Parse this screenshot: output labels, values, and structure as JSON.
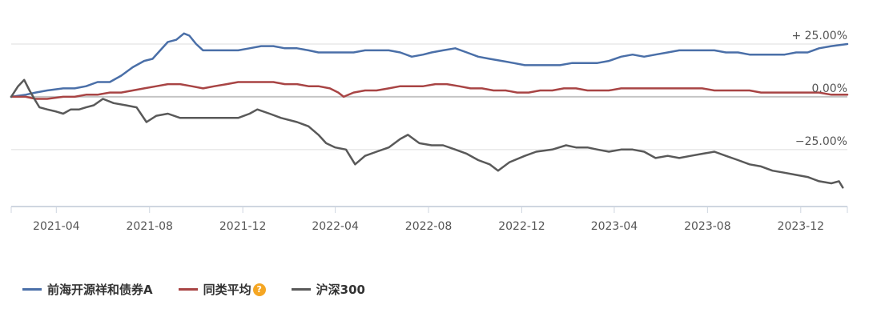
{
  "chart_data": {
    "type": "line",
    "x_ticks": [
      "2021-04",
      "2021-08",
      "2021-12",
      "2022-04",
      "2022-08",
      "2022-12",
      "2023-04",
      "2023-08",
      "2023-12"
    ],
    "x_range": [
      "2021-02-01",
      "2024-01-31"
    ],
    "y_ticks": [
      {
        "value": 25,
        "label": "+ 25.00%"
      },
      {
        "value": 0,
        "label": "0.00%"
      },
      {
        "value": -25,
        "label": "−25.00%"
      }
    ],
    "ylim": [
      -52,
      36
    ],
    "grid": "horizontal",
    "legend_position": "bottom-left",
    "series": [
      {
        "name": "前海开源祥和债券A",
        "color": "#4a6fa8",
        "points": [
          [
            "2021-02-01",
            0
          ],
          [
            "2021-02-20",
            1
          ],
          [
            "2021-03-05",
            2
          ],
          [
            "2021-03-20",
            3
          ],
          [
            "2021-04-10",
            4
          ],
          [
            "2021-04-25",
            4
          ],
          [
            "2021-05-10",
            5
          ],
          [
            "2021-05-25",
            7
          ],
          [
            "2021-06-10",
            7
          ],
          [
            "2021-06-25",
            10
          ],
          [
            "2021-07-10",
            14
          ],
          [
            "2021-07-25",
            17
          ],
          [
            "2021-08-05",
            18
          ],
          [
            "2021-08-15",
            22
          ],
          [
            "2021-08-25",
            26
          ],
          [
            "2021-09-05",
            27
          ],
          [
            "2021-09-15",
            30
          ],
          [
            "2021-09-22",
            29
          ],
          [
            "2021-10-01",
            25
          ],
          [
            "2021-10-10",
            22
          ],
          [
            "2021-10-25",
            22
          ],
          [
            "2021-11-10",
            22
          ],
          [
            "2021-11-25",
            22
          ],
          [
            "2021-12-10",
            23
          ],
          [
            "2021-12-25",
            24
          ],
          [
            "2022-01-10",
            24
          ],
          [
            "2022-01-25",
            23
          ],
          [
            "2022-02-10",
            23
          ],
          [
            "2022-02-25",
            22
          ],
          [
            "2022-03-10",
            21
          ],
          [
            "2022-03-25",
            21
          ],
          [
            "2022-04-10",
            21
          ],
          [
            "2022-04-25",
            21
          ],
          [
            "2022-05-10",
            22
          ],
          [
            "2022-05-25",
            22
          ],
          [
            "2022-06-10",
            22
          ],
          [
            "2022-06-25",
            21
          ],
          [
            "2022-07-10",
            19
          ],
          [
            "2022-07-25",
            20
          ],
          [
            "2022-08-05",
            21
          ],
          [
            "2022-08-20",
            22
          ],
          [
            "2022-09-05",
            23
          ],
          [
            "2022-09-20",
            21
          ],
          [
            "2022-10-05",
            19
          ],
          [
            "2022-10-20",
            18
          ],
          [
            "2022-11-05",
            17
          ],
          [
            "2022-11-20",
            16
          ],
          [
            "2022-12-05",
            15
          ],
          [
            "2022-12-20",
            15
          ],
          [
            "2023-01-05",
            15
          ],
          [
            "2023-01-20",
            15
          ],
          [
            "2023-02-05",
            16
          ],
          [
            "2023-02-20",
            16
          ],
          [
            "2023-03-10",
            16
          ],
          [
            "2023-03-25",
            17
          ],
          [
            "2023-04-10",
            19
          ],
          [
            "2023-04-25",
            20
          ],
          [
            "2023-05-10",
            19
          ],
          [
            "2023-05-25",
            20
          ],
          [
            "2023-06-10",
            21
          ],
          [
            "2023-06-25",
            22
          ],
          [
            "2023-07-10",
            22
          ],
          [
            "2023-07-25",
            22
          ],
          [
            "2023-08-10",
            22
          ],
          [
            "2023-08-25",
            21
          ],
          [
            "2023-09-10",
            21
          ],
          [
            "2023-09-25",
            20
          ],
          [
            "2023-10-10",
            20
          ],
          [
            "2023-10-25",
            20
          ],
          [
            "2023-11-10",
            20
          ],
          [
            "2023-11-25",
            21
          ],
          [
            "2023-12-10",
            21
          ],
          [
            "2023-12-25",
            23
          ],
          [
            "2024-01-10",
            24
          ],
          [
            "2024-01-31",
            25
          ]
        ]
      },
      {
        "name": "同类平均",
        "color": "#a84444",
        "points": [
          [
            "2021-02-01",
            0
          ],
          [
            "2021-02-20",
            0
          ],
          [
            "2021-03-05",
            -1
          ],
          [
            "2021-03-20",
            -1
          ],
          [
            "2021-04-10",
            0
          ],
          [
            "2021-04-25",
            0
          ],
          [
            "2021-05-10",
            1
          ],
          [
            "2021-05-25",
            1
          ],
          [
            "2021-06-10",
            2
          ],
          [
            "2021-06-25",
            2
          ],
          [
            "2021-07-10",
            3
          ],
          [
            "2021-07-25",
            4
          ],
          [
            "2021-08-10",
            5
          ],
          [
            "2021-08-25",
            6
          ],
          [
            "2021-09-10",
            6
          ],
          [
            "2021-09-25",
            5
          ],
          [
            "2021-10-10",
            4
          ],
          [
            "2021-10-25",
            5
          ],
          [
            "2021-11-10",
            6
          ],
          [
            "2021-11-25",
            7
          ],
          [
            "2021-12-10",
            7
          ],
          [
            "2021-12-25",
            7
          ],
          [
            "2022-01-10",
            7
          ],
          [
            "2022-01-25",
            6
          ],
          [
            "2022-02-10",
            6
          ],
          [
            "2022-02-25",
            5
          ],
          [
            "2022-03-10",
            5
          ],
          [
            "2022-03-25",
            4
          ],
          [
            "2022-04-05",
            2
          ],
          [
            "2022-04-12",
            0
          ],
          [
            "2022-04-25",
            2
          ],
          [
            "2022-05-10",
            3
          ],
          [
            "2022-05-25",
            3
          ],
          [
            "2022-06-10",
            4
          ],
          [
            "2022-06-25",
            5
          ],
          [
            "2022-07-10",
            5
          ],
          [
            "2022-07-25",
            5
          ],
          [
            "2022-08-10",
            6
          ],
          [
            "2022-08-25",
            6
          ],
          [
            "2022-09-10",
            5
          ],
          [
            "2022-09-25",
            4
          ],
          [
            "2022-10-10",
            4
          ],
          [
            "2022-10-25",
            3
          ],
          [
            "2022-11-10",
            3
          ],
          [
            "2022-11-25",
            2
          ],
          [
            "2022-12-10",
            2
          ],
          [
            "2022-12-25",
            3
          ],
          [
            "2023-01-10",
            3
          ],
          [
            "2023-01-25",
            4
          ],
          [
            "2023-02-10",
            4
          ],
          [
            "2023-02-25",
            3
          ],
          [
            "2023-03-10",
            3
          ],
          [
            "2023-03-25",
            3
          ],
          [
            "2023-04-10",
            4
          ],
          [
            "2023-04-25",
            4
          ],
          [
            "2023-05-10",
            4
          ],
          [
            "2023-05-25",
            4
          ],
          [
            "2023-06-10",
            4
          ],
          [
            "2023-06-25",
            4
          ],
          [
            "2023-07-10",
            4
          ],
          [
            "2023-07-25",
            4
          ],
          [
            "2023-08-10",
            3
          ],
          [
            "2023-08-25",
            3
          ],
          [
            "2023-09-10",
            3
          ],
          [
            "2023-09-25",
            3
          ],
          [
            "2023-10-10",
            2
          ],
          [
            "2023-10-25",
            2
          ],
          [
            "2023-11-10",
            2
          ],
          [
            "2023-11-25",
            2
          ],
          [
            "2023-12-10",
            2
          ],
          [
            "2023-12-25",
            2
          ],
          [
            "2024-01-10",
            1
          ],
          [
            "2024-01-31",
            1
          ]
        ]
      },
      {
        "name": "沪深300",
        "color": "#595959",
        "points": [
          [
            "2021-02-01",
            0
          ],
          [
            "2021-02-10",
            5
          ],
          [
            "2021-02-18",
            8
          ],
          [
            "2021-02-25",
            3
          ],
          [
            "2021-03-05",
            -2
          ],
          [
            "2021-03-10",
            -5
          ],
          [
            "2021-03-20",
            -6
          ],
          [
            "2021-04-01",
            -7
          ],
          [
            "2021-04-10",
            -8
          ],
          [
            "2021-04-20",
            -6
          ],
          [
            "2021-05-01",
            -6
          ],
          [
            "2021-05-10",
            -5
          ],
          [
            "2021-05-20",
            -4
          ],
          [
            "2021-06-01",
            -1
          ],
          [
            "2021-06-15",
            -3
          ],
          [
            "2021-07-01",
            -4
          ],
          [
            "2021-07-15",
            -5
          ],
          [
            "2021-07-28",
            -12
          ],
          [
            "2021-08-10",
            -9
          ],
          [
            "2021-08-25",
            -8
          ],
          [
            "2021-09-10",
            -10
          ],
          [
            "2021-09-25",
            -10
          ],
          [
            "2021-10-10",
            -10
          ],
          [
            "2021-10-25",
            -10
          ],
          [
            "2021-11-10",
            -10
          ],
          [
            "2021-11-25",
            -10
          ],
          [
            "2021-12-10",
            -8
          ],
          [
            "2021-12-20",
            -6
          ],
          [
            "2022-01-05",
            -8
          ],
          [
            "2022-01-20",
            -10
          ],
          [
            "2022-02-10",
            -12
          ],
          [
            "2022-02-25",
            -14
          ],
          [
            "2022-03-10",
            -18
          ],
          [
            "2022-03-20",
            -22
          ],
          [
            "2022-04-01",
            -24
          ],
          [
            "2022-04-15",
            -25
          ],
          [
            "2022-04-27",
            -32
          ],
          [
            "2022-05-10",
            -28
          ],
          [
            "2022-05-25",
            -26
          ],
          [
            "2022-06-10",
            -24
          ],
          [
            "2022-06-25",
            -20
          ],
          [
            "2022-07-05",
            -18
          ],
          [
            "2022-07-20",
            -22
          ],
          [
            "2022-08-05",
            -23
          ],
          [
            "2022-08-20",
            -23
          ],
          [
            "2022-09-05",
            -25
          ],
          [
            "2022-09-20",
            -27
          ],
          [
            "2022-10-05",
            -30
          ],
          [
            "2022-10-20",
            -32
          ],
          [
            "2022-10-31",
            -35
          ],
          [
            "2022-11-15",
            -31
          ],
          [
            "2022-12-05",
            -28
          ],
          [
            "2022-12-20",
            -26
          ],
          [
            "2023-01-10",
            -25
          ],
          [
            "2023-01-28",
            -23
          ],
          [
            "2023-02-10",
            -24
          ],
          [
            "2023-02-25",
            -24
          ],
          [
            "2023-03-10",
            -25
          ],
          [
            "2023-03-25",
            -26
          ],
          [
            "2023-04-10",
            -25
          ],
          [
            "2023-04-25",
            -25
          ],
          [
            "2023-05-10",
            -26
          ],
          [
            "2023-05-25",
            -29
          ],
          [
            "2023-06-10",
            -28
          ],
          [
            "2023-06-25",
            -29
          ],
          [
            "2023-07-10",
            -28
          ],
          [
            "2023-07-25",
            -27
          ],
          [
            "2023-08-10",
            -26
          ],
          [
            "2023-08-25",
            -28
          ],
          [
            "2023-09-10",
            -30
          ],
          [
            "2023-09-25",
            -32
          ],
          [
            "2023-10-10",
            -33
          ],
          [
            "2023-10-25",
            -35
          ],
          [
            "2023-11-10",
            -36
          ],
          [
            "2023-11-25",
            -37
          ],
          [
            "2023-12-10",
            -38
          ],
          [
            "2023-12-25",
            -40
          ],
          [
            "2024-01-10",
            -41
          ],
          [
            "2024-01-20",
            -40
          ],
          [
            "2024-01-25",
            -43
          ]
        ]
      }
    ]
  },
  "legend": {
    "items": [
      {
        "label": "前海开源祥和债券A",
        "color": "#4a6fa8"
      },
      {
        "label": "同类平均",
        "color": "#a84444",
        "icon": "question-icon"
      },
      {
        "label": "沪深300",
        "color": "#595959"
      }
    ],
    "help_glyph": "?"
  }
}
